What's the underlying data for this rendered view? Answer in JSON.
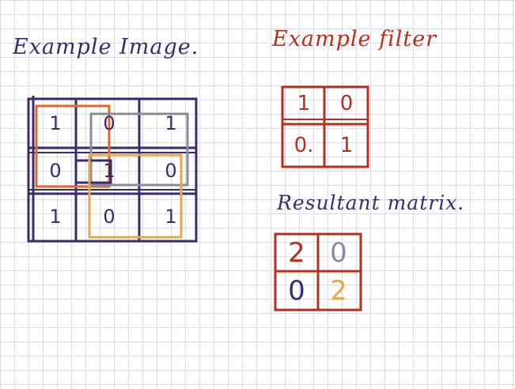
{
  "colors": {
    "purple": "#3b2a6e",
    "red": "#b5301c",
    "orange": "#e0692a",
    "gray": "#8a8a9e",
    "gold": "#e2a84a"
  },
  "image_section": {
    "title": "Example Image.",
    "matrix": [
      [
        "1",
        "0",
        "1"
      ],
      [
        "0",
        "1",
        "0"
      ],
      [
        "1",
        "0",
        "1"
      ]
    ]
  },
  "filter_section": {
    "title": "Example filter",
    "matrix": [
      [
        "1",
        "0"
      ],
      [
        "0.",
        "1"
      ]
    ]
  },
  "result_section": {
    "title": "Resultant matrix.",
    "matrix": [
      [
        "2",
        "0"
      ],
      [
        "0",
        "2"
      ]
    ]
  }
}
